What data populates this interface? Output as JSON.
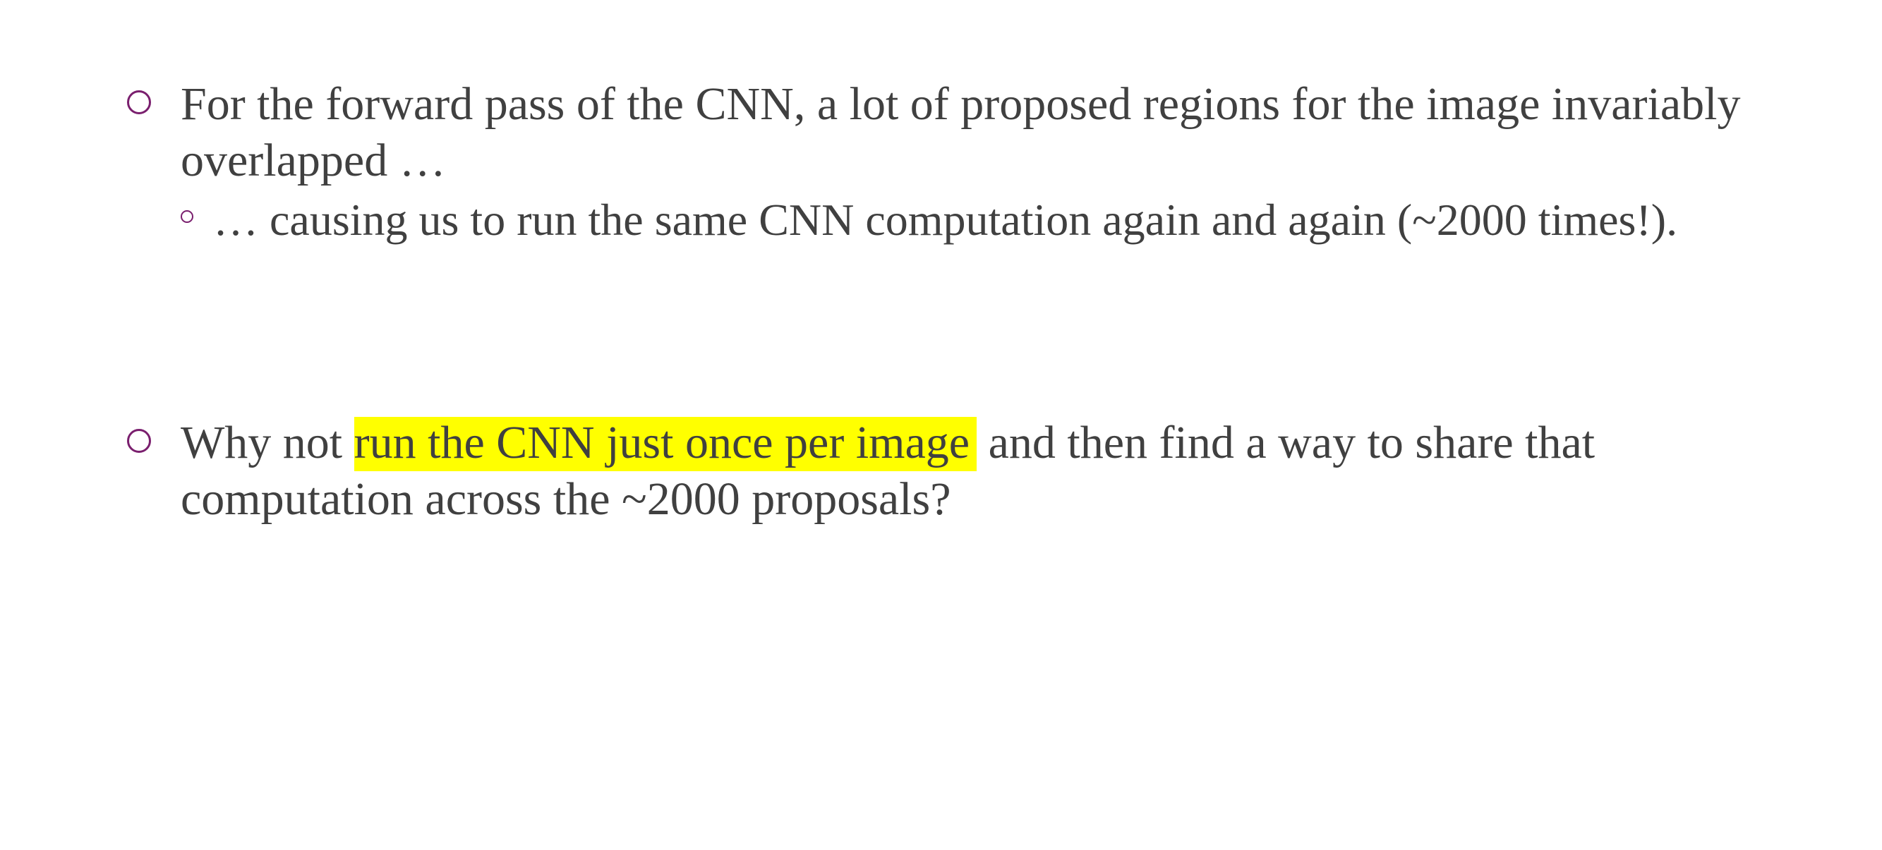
{
  "bullets": [
    {
      "text": "For the forward pass of the CNN, a lot of proposed regions for the image invariably overlapped …",
      "sub": [
        {
          "text": "… causing us to run the same CNN computation again and again (~2000 times!)."
        }
      ]
    },
    {
      "pre": "Why not ",
      "highlight": "run the CNN just once per image",
      "post": " and then find a way to share that computation across the ~2000 proposals?"
    }
  ],
  "colors": {
    "text": "#404040",
    "bullet_marker": "#7a1f6e",
    "highlight": "#ffff00"
  }
}
